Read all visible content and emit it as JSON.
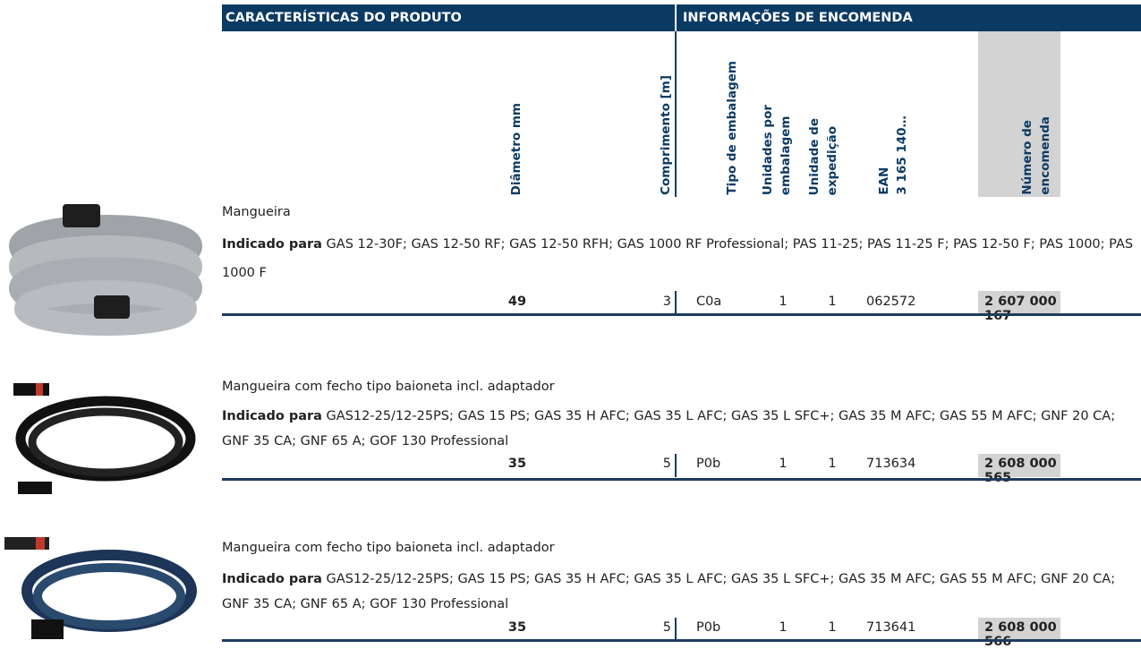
{
  "header": {
    "left": "CARACTERÍSTICAS DO PRODUTO",
    "right": "INFORMAÇÕES DE ENCOMENDA"
  },
  "columns": [
    [
      "Diâmetro mm"
    ],
    [
      "Comprimento [m]"
    ],
    [
      "Tipo de embalagem"
    ],
    [
      "Unidades por",
      "embalagem"
    ],
    [
      "Unidade de",
      "expedição"
    ],
    [
      "EAN",
      "3 165 140…"
    ],
    [
      "Número de",
      "encomenda"
    ]
  ],
  "products": [
    {
      "name": "Mangueira",
      "label": "Indicado para",
      "compatible": "GAS 12-30F; GAS 12-50 RF; GAS 12-50 RFH; GAS 1000 RF Professional; PAS 11-25; PAS 11-25 F; PAS 12-50 F; PAS 1000; PAS 1000 F",
      "row": [
        49,
        3,
        "C0a",
        1,
        1,
        "062572",
        "2 607 000 167"
      ]
    },
    {
      "name": "Mangueira com fecho tipo baioneta incl. adaptador",
      "label": "Indicado para",
      "compatible": "GAS12-25/12-25PS; GAS 15 PS; GAS 35 H AFC; GAS 35 L AFC; GAS 35 L SFC+; GAS 35 M AFC; GAS 55 M AFC; GNF 20 CA; GNF 35 CA; GNF 65 A; GOF 130 Professional",
      "row": [
        35,
        5,
        "P0b",
        1,
        1,
        "713634",
        "2 608 000 565"
      ]
    },
    {
      "name": "Mangueira com fecho tipo baioneta incl. adaptador",
      "label": "Indicado para",
      "compatible": "GAS12-25/12-25PS; GAS 15 PS; GAS 35 H AFC; GAS 35 L AFC; GAS 35 L SFC+; GAS 35 M AFC; GAS 55 M AFC; GNF 20 CA; GNF 35 CA; GNF 65 A; GOF 130 Professional",
      "row": [
        35,
        5,
        "P0b",
        1,
        1,
        "713641",
        "2 608 000 566"
      ]
    }
  ]
}
